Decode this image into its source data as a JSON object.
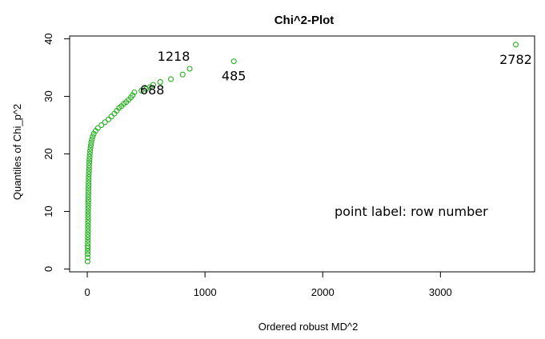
{
  "chart_data": {
    "type": "scatter",
    "title": "Chi^2-Plot",
    "xlabel": "Ordered robust MD^2",
    "ylabel": "Quantiles of Chi_p^2",
    "xlim": [
      -150,
      3800
    ],
    "ylim": [
      -0.5,
      40.5
    ],
    "xticks": [
      0,
      1000,
      2000,
      3000
    ],
    "yticks": [
      0,
      10,
      20,
      30,
      40
    ],
    "color": "#22b01c",
    "marker": "open-circle",
    "grid": false,
    "annotation": "point label: row number",
    "labeled_points": [
      {
        "label": "2782",
        "x": 3640,
        "y": 39.0
      },
      {
        "label": "485",
        "x": 1245,
        "y": 36.1
      },
      {
        "label": "1218",
        "x": 870,
        "y": 34.8
      },
      {
        "label": "688",
        "x": 810,
        "y": 33.8
      }
    ],
    "points": [
      [
        2,
        1.3
      ],
      [
        3,
        2.0
      ],
      [
        3,
        2.6
      ],
      [
        4,
        3.1
      ],
      [
        4,
        3.6
      ],
      [
        4,
        4.0
      ],
      [
        5,
        4.5
      ],
      [
        5,
        5.0
      ],
      [
        5,
        5.5
      ],
      [
        5,
        6.0
      ],
      [
        6,
        6.5
      ],
      [
        6,
        7.0
      ],
      [
        6,
        7.5
      ],
      [
        6,
        8.0
      ],
      [
        7,
        8.5
      ],
      [
        7,
        9.0
      ],
      [
        7,
        9.5
      ],
      [
        7,
        10.0
      ],
      [
        8,
        10.5
      ],
      [
        8,
        11.0
      ],
      [
        8,
        11.5
      ],
      [
        9,
        12.0
      ],
      [
        9,
        12.5
      ],
      [
        9,
        13.0
      ],
      [
        10,
        13.5
      ],
      [
        10,
        14.0
      ],
      [
        11,
        14.5
      ],
      [
        11,
        15.0
      ],
      [
        12,
        15.5
      ],
      [
        12,
        16.0
      ],
      [
        13,
        16.5
      ],
      [
        14,
        17.0
      ],
      [
        15,
        17.5
      ],
      [
        16,
        18.0
      ],
      [
        17,
        18.5
      ],
      [
        18,
        19.0
      ],
      [
        20,
        19.5
      ],
      [
        22,
        20.0
      ],
      [
        24,
        20.5
      ],
      [
        27,
        21.0
      ],
      [
        30,
        21.5
      ],
      [
        34,
        22.0
      ],
      [
        39,
        22.5
      ],
      [
        46,
        23.0
      ],
      [
        55,
        23.5
      ],
      [
        70,
        24.0
      ],
      [
        90,
        24.5
      ],
      [
        120,
        25.0
      ],
      [
        150,
        25.5
      ],
      [
        180,
        26.0
      ],
      [
        205,
        26.5
      ],
      [
        230,
        27.0
      ],
      [
        250,
        27.5
      ],
      [
        270,
        28.0
      ],
      [
        290,
        28.3
      ],
      [
        310,
        28.7
      ],
      [
        330,
        29.0
      ],
      [
        350,
        29.4
      ],
      [
        370,
        29.8
      ],
      [
        385,
        30.2
      ],
      [
        400,
        30.7
      ],
      [
        460,
        31.0
      ],
      [
        500,
        31.3
      ],
      [
        530,
        31.6
      ],
      [
        560,
        32.0
      ],
      [
        620,
        32.5
      ],
      [
        710,
        33.0
      ],
      [
        810,
        33.8
      ],
      [
        870,
        34.8
      ],
      [
        1245,
        36.1
      ],
      [
        3640,
        39.0
      ]
    ]
  }
}
